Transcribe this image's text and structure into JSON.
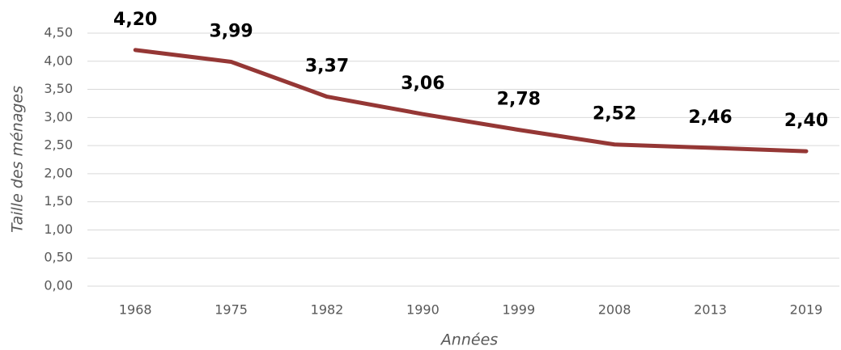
{
  "chart_data": {
    "type": "line",
    "x_label": "Années",
    "y_label": "Taille des ménages",
    "categories": [
      "1968",
      "1975",
      "1982",
      "1990",
      "1999",
      "2008",
      "2013",
      "2019"
    ],
    "values": [
      4.2,
      3.99,
      3.37,
      3.06,
      2.78,
      2.52,
      2.46,
      2.4
    ],
    "value_labels": [
      "4,20",
      "3,99",
      "3,37",
      "3,06",
      "2,78",
      "2,52",
      "2,46",
      "2,40"
    ],
    "color": "#953735",
    "ylim": [
      0,
      4.5
    ],
    "yticks": [
      {
        "value": 0,
        "label": "0,00"
      },
      {
        "value": 0.5,
        "label": "0,50"
      },
      {
        "value": 1,
        "label": "1,00"
      },
      {
        "value": 1.5,
        "label": "1,50"
      },
      {
        "value": 2,
        "label": "2,00"
      },
      {
        "value": 2.5,
        "label": "2,50"
      },
      {
        "value": 3,
        "label": "3,00"
      },
      {
        "value": 3.5,
        "label": "3,50"
      },
      {
        "value": 4,
        "label": "4,00"
      },
      {
        "value": 4.5,
        "label": "4,50"
      }
    ],
    "grid": true
  }
}
